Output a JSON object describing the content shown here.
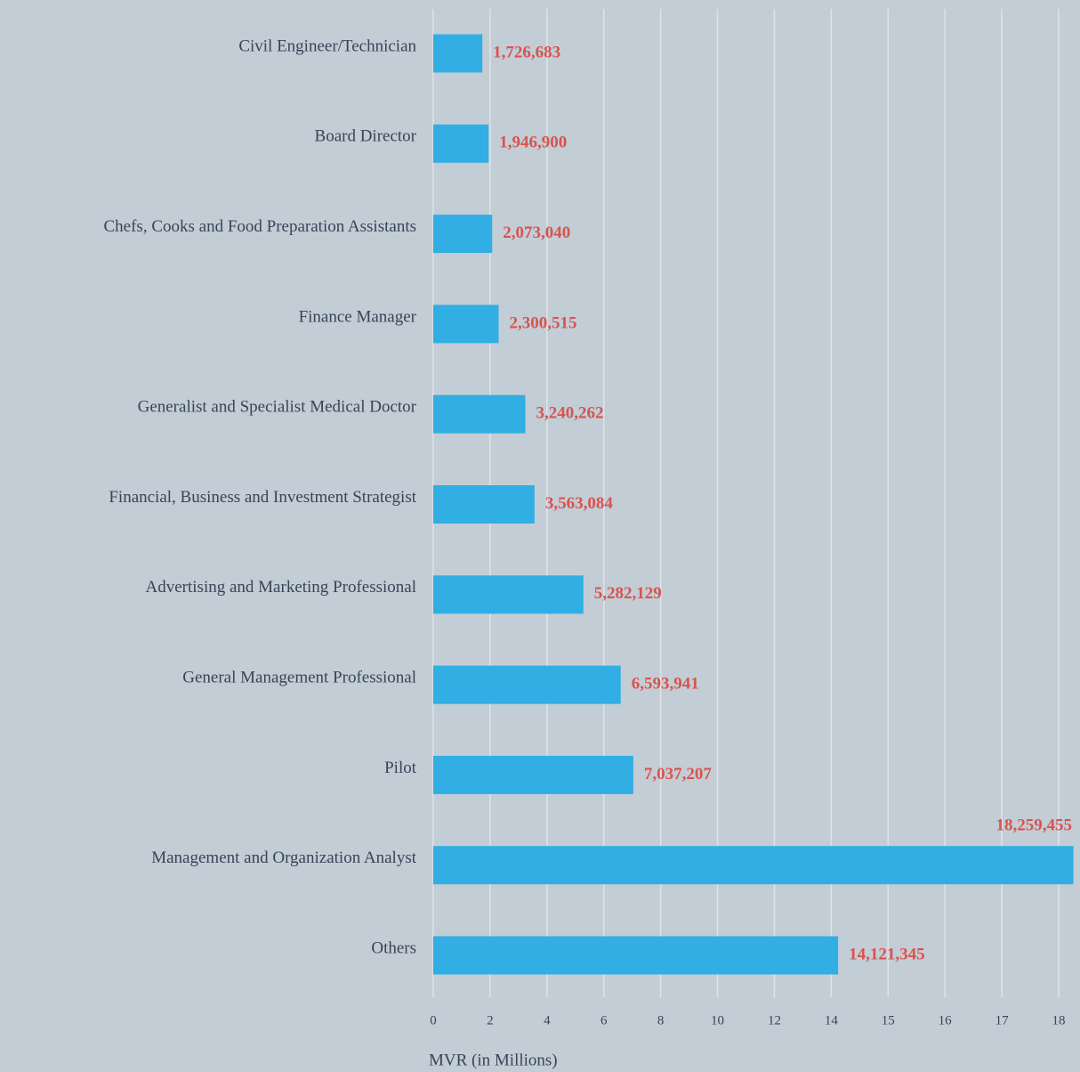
{
  "chart_data": {
    "type": "barh",
    "categories": [
      "Civil Engineer/Technician",
      "Board Director",
      "Chefs, Cooks and Food Preparation Assistants",
      "Finance Manager",
      "Generalist and Specialist Medical Doctor",
      "Financial, Business and Investment Strategist",
      "Advertising and Marketing Professional",
      "General Management Professional",
      "Pilot",
      "Management and Organization Analyst",
      "Others"
    ],
    "values": [
      1.726683,
      1.9469,
      2.07304,
      2.300515,
      3.240262,
      3.563084,
      5.282129,
      6.593941,
      7.037207,
      18.259455,
      14.121345
    ],
    "value_labels": [
      "1,726,683",
      "1,946,900",
      "2,073,040",
      "2,300,515",
      "3,240,262",
      "3,563,084",
      "5,282,129",
      "6,593,941",
      "7,037,207",
      "18,259,455",
      "14,121,345"
    ],
    "color": "#31aee3",
    "label_color": "#d9534f",
    "xlabel": "MVR (in Millions)",
    "xlim": [
      0,
      18.3
    ],
    "xticks": [
      0,
      2,
      4,
      6,
      8,
      10,
      12,
      14,
      15,
      16,
      17,
      18
    ],
    "grid": true
  }
}
